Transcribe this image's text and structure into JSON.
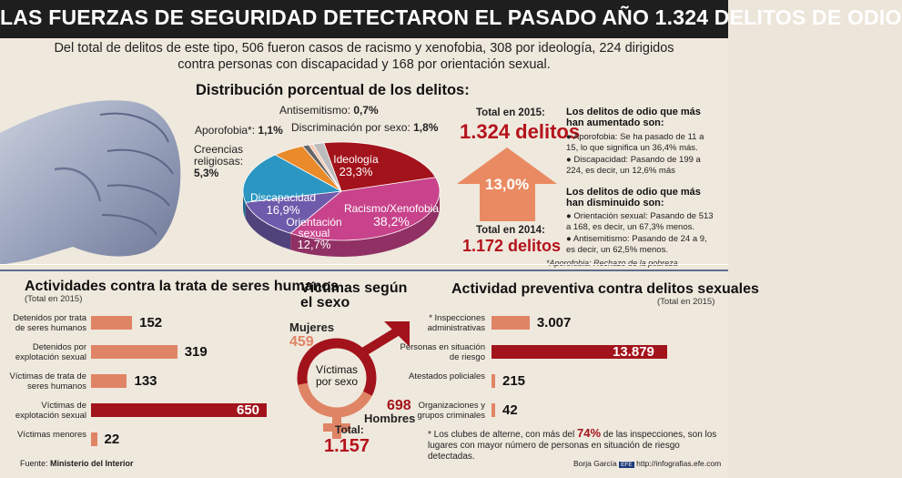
{
  "header": {
    "title": "LAS FUERZAS DE SEGURIDAD DETECTARON EL PASADO AÑO 1.324 DELITOS DE ODIO",
    "subtitle": "Del total de delitos de este tipo, 506 fueron casos de racismo y xenofobia, 308 por ideología, 224 dirigidos contra personas con discapacidad y 168 por orientación sexual."
  },
  "pie_section": {
    "title": "Distribución porcentual de los delitos:",
    "footnote": "*Aporofobia: Rechazo de la pobreza"
  },
  "totals": {
    "label_2015": "Total en 2015:",
    "value_2015": "1.324 delitos",
    "label_2014": "Total en 2014:",
    "value_2014": "1.172 delitos",
    "change": "13,0%"
  },
  "increased": {
    "title": "Los delitos de odio que más han aumentado son:",
    "items": [
      "Aporofobia: Se ha pasado de 11 a 15, lo que significa un 36,4% más.",
      "Discapacidad: Pasando de 199 a 224, es decir, un 12,6% más"
    ]
  },
  "decreased": {
    "title": "Los delitos de odio que más han disminuido son:",
    "items": [
      "Orientación sexual: Pasando de 513 a 168, es decir, un 67,3% menos.",
      "Antisemitismo: Pasando de 24 a 9, es decir, un 62,5% menos."
    ]
  },
  "trafficking": {
    "title": "Actividades contra la trata de seres humanos",
    "note": "(Total en 2015)"
  },
  "gender": {
    "title": "Víctimas según el sexo",
    "women_label": "Mujeres",
    "women_value": "459",
    "men_label": "Hombres",
    "men_value": "698",
    "center": "Víctimas por sexo",
    "total_label": "Total:",
    "total_value": "1.157"
  },
  "prevention": {
    "title": "Actividad preventiva contra delitos sexuales",
    "note": "(Total en 2015)",
    "footnote_pre": "* Los clubes de alterne, con más del ",
    "footnote_pct": "74%",
    "footnote_post": " de las inspecciones, son los lugares con mayor número de personas en situación de riesgo detectadas."
  },
  "footer": {
    "source_label": "Fuente:",
    "source": "Ministerio del Interior",
    "author": "Borja García",
    "site": "http://infografias.efe.com"
  },
  "colors": {
    "accent_red": "#b5121b",
    "bar_light": "#e08466",
    "bar_dark": "#a3131b",
    "arrow": "#ea8a62"
  },
  "chart_data": [
    {
      "type": "pie",
      "title": "Distribución porcentual de los delitos:",
      "slices": [
        {
          "name": "Ideología",
          "value": 23.3,
          "label": "23,3%",
          "color": "#a3131b"
        },
        {
          "name": "Racismo/Xenofobia",
          "value": 38.2,
          "label": "38,2%",
          "color": "#c8438b"
        },
        {
          "name": "Orientación sexual",
          "value": 12.7,
          "label": "12,7%",
          "color": "#6f5bab"
        },
        {
          "name": "Discapacidad",
          "value": 16.9,
          "label": "16,9%",
          "color": "#2b96c2"
        },
        {
          "name": "Creencias religiosas",
          "value": 5.3,
          "label": "5,3%",
          "color": "#e98b2a"
        },
        {
          "name": "Aporofobia*",
          "value": 1.1,
          "label": "1,1%",
          "color": "#666666"
        },
        {
          "name": "Antisemitismo",
          "value": 0.7,
          "label": "0,7%",
          "color": "#f2c4a8"
        },
        {
          "name": "Discriminación por sexo",
          "value": 1.8,
          "label": "1,8%",
          "color": "#bcbcbc"
        }
      ]
    },
    {
      "type": "bar",
      "title": "Actividades contra la trata de seres humanos",
      "categories": [
        "Detenidos por trata de seres humanos",
        "Detenidos por explotación sexual",
        "Víctimas de trata de seres humanos",
        "Víctimas de explotación sexual",
        "Víctimas menores"
      ],
      "values": [
        152,
        319,
        133,
        650,
        22
      ],
      "value_labels": [
        "152",
        "319",
        "133",
        "650",
        "22"
      ],
      "xlim": [
        0,
        650
      ]
    },
    {
      "type": "pie",
      "title": "Víctimas según el sexo",
      "slices": [
        {
          "name": "Mujeres",
          "value": 459,
          "label": "459"
        },
        {
          "name": "Hombres",
          "value": 698,
          "label": "698"
        }
      ]
    },
    {
      "type": "bar",
      "title": "Actividad preventiva contra delitos sexuales",
      "categories": [
        "* Inspecciones administrativas",
        "Personas en situación de riesgo",
        "Atestados policiales",
        "Organizaciones y grupos criminales"
      ],
      "values": [
        3007,
        13879,
        215,
        42
      ],
      "value_labels": [
        "3.007",
        "13.879",
        "215",
        "42"
      ],
      "xlim": [
        0,
        13879
      ]
    }
  ]
}
